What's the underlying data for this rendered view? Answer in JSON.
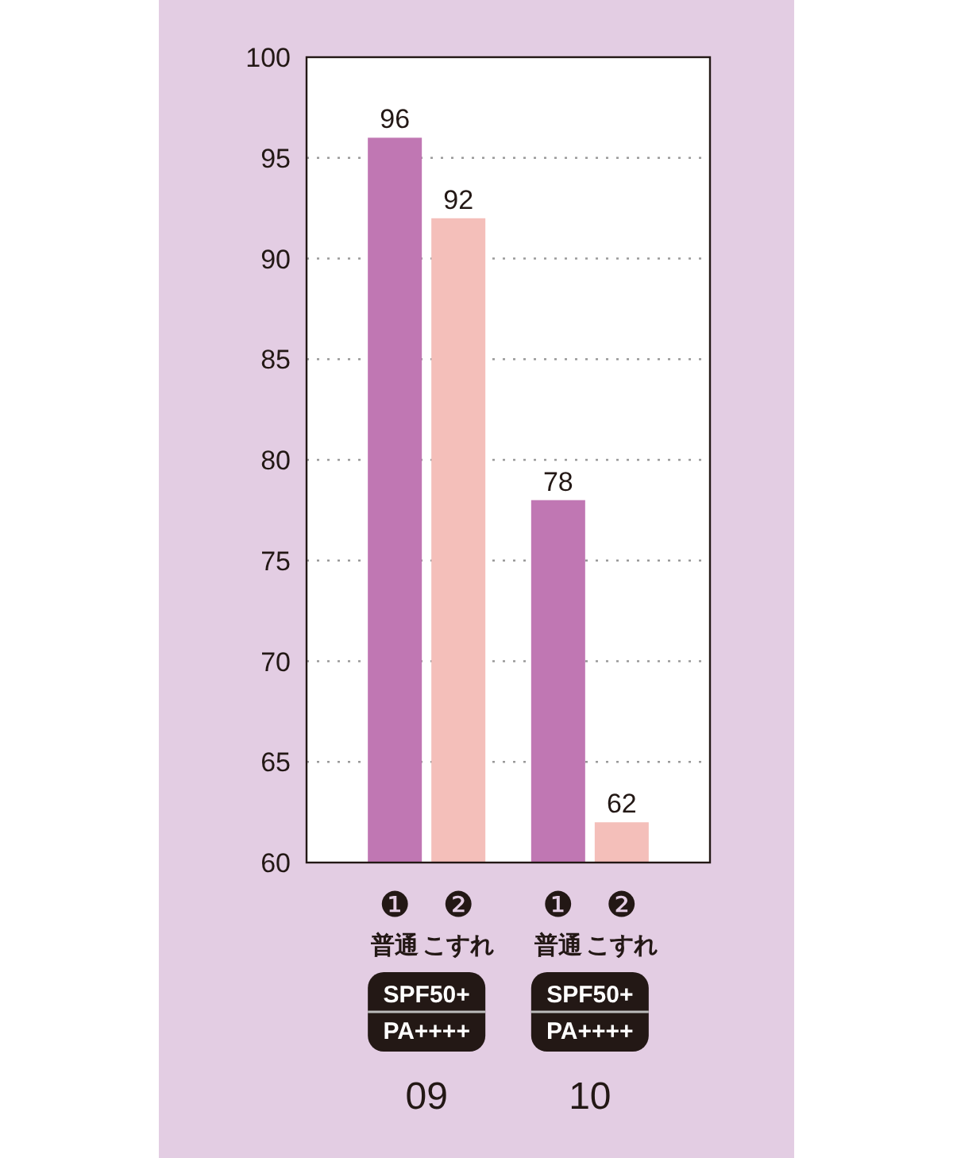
{
  "chart_data": {
    "type": "bar",
    "categories": [
      "09",
      "10"
    ],
    "series": [
      {
        "name": "❶ 普通",
        "color": "#c077b3",
        "values": [
          96,
          78
        ]
      },
      {
        "name": "❷ こすれ",
        "color": "#f4bfba",
        "values": [
          92,
          62
        ]
      }
    ],
    "ylim": [
      60,
      100
    ],
    "yticks": [
      60,
      65,
      70,
      75,
      80,
      85,
      90,
      95,
      100
    ],
    "grid": "y",
    "data_labels": true,
    "annotations": [
      "SPF50+",
      "PA++++",
      "SPF50+",
      "PA++++"
    ]
  }
}
